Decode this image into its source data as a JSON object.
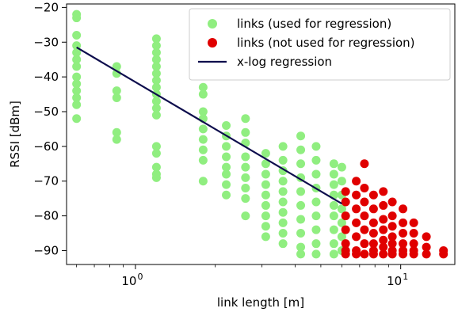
{
  "chart_data": {
    "type": "scatter",
    "title": "",
    "xlabel": "link length [m]",
    "ylabel": "RSSI [dBm]",
    "xscale": "log",
    "xlim": [
      0.55,
      16
    ],
    "ylim": [
      -94,
      -19
    ],
    "grid": false,
    "legend_placement": "top-right",
    "x_ticks": [
      {
        "value": 1,
        "base": "10",
        "exp": "0"
      },
      {
        "value": 10,
        "base": "10",
        "exp": "1"
      }
    ],
    "y_ticks": [
      {
        "value": -20,
        "label": "−20"
      },
      {
        "value": -30,
        "label": "−30"
      },
      {
        "value": -40,
        "label": "−40"
      },
      {
        "value": -50,
        "label": "−50"
      },
      {
        "value": -60,
        "label": "−60"
      },
      {
        "value": -70,
        "label": "−70"
      },
      {
        "value": -80,
        "label": "−80"
      },
      {
        "value": -90,
        "label": "−90"
      }
    ],
    "series": [
      {
        "name": "links (used for regression)",
        "kind": "scatter",
        "color": "#90ee80",
        "columns": [
          {
            "x": 0.6,
            "y": [
              -22,
              -23,
              -28,
              -31,
              -33,
              -35,
              -37,
              -40,
              -42,
              -44,
              -46,
              -48,
              -52
            ]
          },
          {
            "x": 0.85,
            "y": [
              -37,
              -39,
              -44,
              -46,
              -56,
              -58
            ]
          },
          {
            "x": 1.2,
            "y": [
              -29,
              -31,
              -33,
              -35,
              -37,
              -39,
              -41,
              -43,
              -45,
              -47,
              -49,
              -51,
              -60,
              -62,
              -66,
              -68,
              -69
            ]
          },
          {
            "x": 1.8,
            "y": [
              -43,
              -45,
              -50,
              -52,
              -55,
              -58,
              -61,
              -64,
              -70
            ]
          },
          {
            "x": 2.2,
            "y": [
              -54,
              -57,
              -60,
              -63,
              -66,
              -68,
              -71,
              -74
            ]
          },
          {
            "x": 2.6,
            "y": [
              -52,
              -56,
              -59,
              -63,
              -66,
              -69,
              -72,
              -75,
              -80
            ]
          },
          {
            "x": 3.1,
            "y": [
              -62,
              -65,
              -68,
              -71,
              -74,
              -77,
              -80,
              -83,
              -86
            ]
          },
          {
            "x": 3.6,
            "y": [
              -60,
              -64,
              -67,
              -70,
              -73,
              -76,
              -79,
              -82,
              -85,
              -88
            ]
          },
          {
            "x": 4.2,
            "y": [
              -57,
              -61,
              -65,
              -69,
              -73,
              -77,
              -81,
              -85,
              -89,
              -91
            ]
          },
          {
            "x": 4.8,
            "y": [
              -60,
              -64,
              -68,
              -72,
              -76,
              -80,
              -84,
              -88,
              -91
            ]
          },
          {
            "x": 5.6,
            "y": [
              -65,
              -68,
              -71,
              -74,
              -77,
              -80,
              -84,
              -88,
              -91
            ]
          },
          {
            "x": 6.0,
            "y": [
              -66,
              -70,
              -74,
              -78,
              -82,
              -86,
              -90
            ]
          }
        ]
      },
      {
        "name": "links (not used for regression)",
        "kind": "scatter",
        "color": "#e00000",
        "columns": [
          {
            "x": 6.2,
            "y": [
              -73,
              -76,
              -80,
              -84,
              -88,
              -90,
              -91
            ]
          },
          {
            "x": 6.8,
            "y": [
              -70,
              -74,
              -78,
              -82,
              -86,
              -90,
              -91
            ]
          },
          {
            "x": 7.3,
            "y": [
              -65,
              -72,
              -76,
              -80,
              -84,
              -88,
              -91
            ]
          },
          {
            "x": 7.9,
            "y": [
              -74,
              -78,
              -82,
              -85,
              -88,
              -90,
              -91
            ]
          },
          {
            "x": 8.6,
            "y": [
              -73,
              -77,
              -81,
              -84,
              -87,
              -89,
              -91
            ]
          },
          {
            "x": 9.3,
            "y": [
              -76,
              -80,
              -83,
              -86,
              -88,
              -90,
              -91
            ]
          },
          {
            "x": 10.2,
            "y": [
              -78,
              -82,
              -85,
              -88,
              -90,
              -91
            ]
          },
          {
            "x": 11.2,
            "y": [
              -82,
              -85,
              -88,
              -90,
              -91
            ]
          },
          {
            "x": 12.5,
            "y": [
              -86,
              -89,
              -91
            ]
          },
          {
            "x": 14.5,
            "y": [
              -90,
              -91
            ]
          }
        ]
      },
      {
        "name": "x-log regression",
        "kind": "line",
        "color": "#0d0d4d",
        "points": [
          {
            "x": 0.6,
            "y": -31.5
          },
          {
            "x": 6.0,
            "y": -76.5
          }
        ]
      }
    ]
  }
}
